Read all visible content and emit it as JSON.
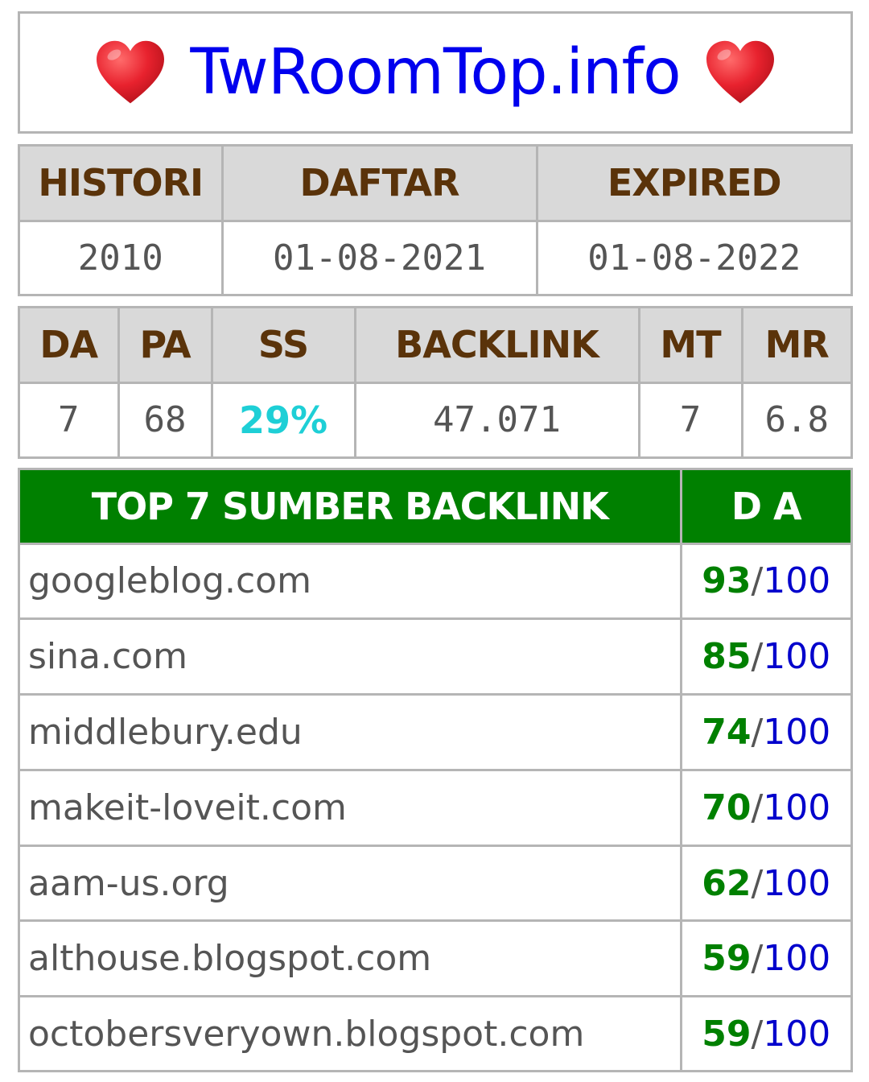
{
  "header": {
    "title": "TwRoomTop.info",
    "heart_color": "#e8222e",
    "heart_icon": "red-heart-emoji"
  },
  "info": {
    "headers": [
      "HISTORI",
      "DAFTAR",
      "EXPIRED"
    ],
    "values": [
      "2010",
      "01-08-2021",
      "01-08-2022"
    ]
  },
  "metrics": {
    "headers": [
      "DA",
      "PA",
      "SS",
      "BACKLINK",
      "MT",
      "MR"
    ],
    "values": [
      "7",
      "68",
      "29%",
      "47.071",
      "7",
      "6.8"
    ],
    "ss_color": "#1ecfd6"
  },
  "backlinks": {
    "header_label": "TOP 7 SUMBER BACKLINK",
    "da_label": "D A",
    "header_color": "#008000",
    "max_score": "100",
    "separator": "/",
    "rows": [
      {
        "domain": "googleblog.com",
        "score": "93"
      },
      {
        "domain": "sina.com",
        "score": "85"
      },
      {
        "domain": "middlebury.edu",
        "score": "74"
      },
      {
        "domain": "makeit-loveit.com",
        "score": "70"
      },
      {
        "domain": "aam-us.org",
        "score": "62"
      },
      {
        "domain": "althouse.blogspot.com",
        "score": "59"
      },
      {
        "domain": "octobersveryown.blogspot.com",
        "score": "59"
      }
    ]
  }
}
